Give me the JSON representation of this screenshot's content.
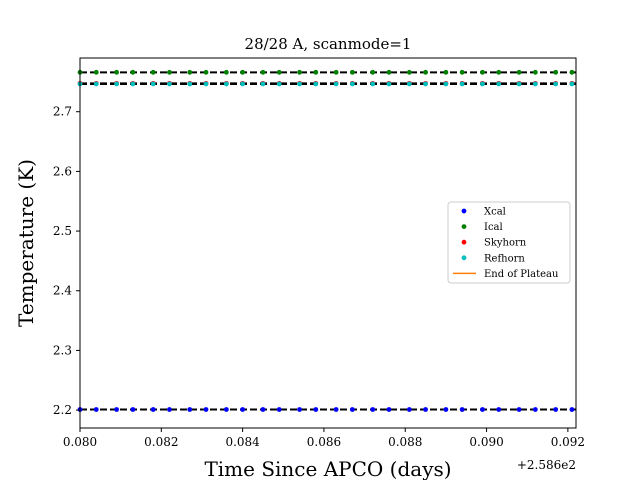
{
  "chart_data": {
    "type": "scatter",
    "title": "28/28 A, scanmode=1",
    "xlabel": "Time Since APCO (days)",
    "ylabel": "Temperature (K)",
    "x_offset_text": "+2.586e2",
    "xlim": [
      0.08,
      0.0922
    ],
    "ylim": [
      2.17,
      2.79
    ],
    "x_ticks": [
      0.08,
      0.082,
      0.084,
      0.086,
      0.088,
      0.09,
      0.092
    ],
    "x_tick_labels": [
      "0.080",
      "0.082",
      "0.084",
      "0.086",
      "0.088",
      "0.090",
      "0.092"
    ],
    "y_ticks": [
      2.2,
      2.3,
      2.4,
      2.5,
      2.6,
      2.7
    ],
    "y_tick_labels": [
      "2.2",
      "2.3",
      "2.4",
      "2.5",
      "2.6",
      "2.7"
    ],
    "legend_position": "center-right",
    "grid": false,
    "x": [
      0.08,
      0.0804,
      0.0809,
      0.0813,
      0.0818,
      0.0822,
      0.0827,
      0.0831,
      0.0836,
      0.084,
      0.0845,
      0.0849,
      0.0854,
      0.0858,
      0.0863,
      0.0867,
      0.0872,
      0.0876,
      0.0881,
      0.0885,
      0.089,
      0.0894,
      0.0899,
      0.0903,
      0.0908,
      0.0912,
      0.0917,
      0.0921
    ],
    "series": [
      {
        "name": "Xcal",
        "color": "#0000ff",
        "kind": "points",
        "y_level": 2.201,
        "x_shift": 0.0
      },
      {
        "name": "Ical",
        "color": "#008000",
        "kind": "points",
        "y_level": 2.766,
        "x_shift": 0.0
      },
      {
        "name": "Skyhorn",
        "color": "#ff0000",
        "kind": "points",
        "y_level": 2.7475,
        "x_shift": 0.0
      },
      {
        "name": "Refhorn",
        "color": "#00bfbf",
        "kind": "points",
        "y_level": 2.7465,
        "x_shift": 0.0
      },
      {
        "name": "End of Plateau",
        "color": "#ff7f0e",
        "kind": "line"
      }
    ],
    "reference_lines": [
      2.201,
      2.766,
      2.7475,
      2.7465
    ]
  }
}
